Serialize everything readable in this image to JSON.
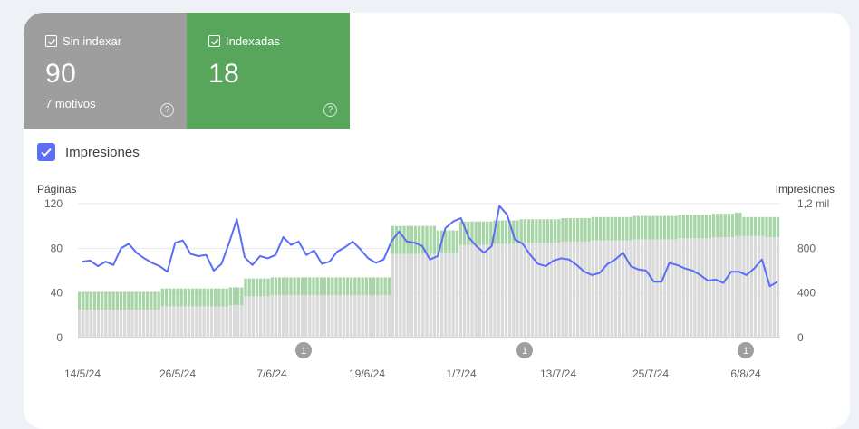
{
  "tiles": {
    "not_indexed": {
      "label": "Sin indexar",
      "value": "90",
      "sub": "7 motivos",
      "color": "#9e9e9e",
      "help_icon": "help-circle-icon"
    },
    "indexed": {
      "label": "Indexadas",
      "value": "18",
      "color": "#57a65b",
      "help_icon": "help-circle-icon"
    }
  },
  "impressions_toggle": {
    "label": "Impresiones",
    "checked": true,
    "color": "#5b6ef5"
  },
  "chart_data": {
    "type": "bar",
    "left_axis": {
      "title": "Páginas",
      "ticks": [
        "120",
        "80",
        "40",
        "0"
      ],
      "ylim": [
        0,
        120
      ]
    },
    "right_axis": {
      "title": "Impresiones",
      "ticks": [
        "1,2 mil",
        "800",
        "400",
        "0"
      ],
      "ylim": [
        0,
        1200
      ]
    },
    "x_tick_labels": [
      "14/5/24",
      "26/5/24",
      "7/6/24",
      "19/6/24",
      "1/7/24",
      "13/7/24",
      "25/7/24",
      "6/8/24"
    ],
    "x_start": "14/5/24",
    "series": [
      {
        "name": "Sin indexar",
        "color": "#dadada",
        "values": [
          25,
          25,
          25,
          25,
          25,
          25,
          25,
          25,
          25,
          25,
          25,
          25,
          25,
          25,
          25,
          25,
          25,
          25,
          25,
          25,
          25,
          25,
          28,
          28,
          28,
          28,
          28,
          28,
          28,
          28,
          28,
          28,
          28,
          28,
          28,
          28,
          28,
          28,
          28,
          28,
          29,
          29,
          29,
          29,
          37,
          37,
          37,
          37,
          37,
          37,
          37,
          38,
          38,
          38,
          38,
          38,
          38,
          38,
          38,
          38,
          38,
          38,
          38,
          38,
          38,
          38,
          38,
          38,
          38,
          38,
          38,
          38,
          38,
          38,
          38,
          38,
          38,
          38,
          38,
          38,
          38,
          38,
          38,
          75,
          75,
          75,
          75,
          75,
          75,
          75,
          75,
          75,
          75,
          75,
          75,
          76,
          76,
          76,
          76,
          76,
          76,
          83,
          83,
          83,
          83,
          83,
          83,
          83,
          83,
          83,
          84,
          84,
          84,
          84,
          84,
          84,
          84,
          85,
          85,
          85,
          85,
          85,
          85,
          85,
          85,
          85,
          85,
          85,
          86,
          86,
          86,
          86,
          86,
          86,
          86,
          86,
          87,
          87,
          87,
          87,
          87,
          87,
          87,
          87,
          87,
          87,
          87,
          88,
          88,
          88,
          88,
          88,
          88,
          88,
          88,
          88,
          88,
          88,
          88,
          89,
          89,
          89,
          89,
          89,
          89,
          89,
          89,
          89,
          90,
          90,
          90,
          90,
          90,
          90,
          91,
          91,
          91,
          91,
          91,
          91,
          91,
          91,
          90,
          90,
          90,
          90
        ]
      },
      {
        "name": "Indexadas",
        "color": "#a8d5a8",
        "values": [
          16,
          16,
          16,
          16,
          16,
          16,
          16,
          16,
          16,
          16,
          16,
          16,
          16,
          16,
          16,
          16,
          16,
          16,
          16,
          16,
          16,
          16,
          16,
          16,
          16,
          16,
          16,
          16,
          16,
          16,
          16,
          16,
          16,
          16,
          16,
          16,
          16,
          16,
          16,
          16,
          16,
          16,
          16,
          16,
          16,
          16,
          16,
          16,
          16,
          16,
          16,
          16,
          16,
          16,
          16,
          16,
          16,
          16,
          16,
          16,
          16,
          16,
          16,
          16,
          16,
          16,
          16,
          16,
          16,
          16,
          16,
          16,
          16,
          16,
          16,
          16,
          16,
          16,
          16,
          16,
          16,
          16,
          16,
          25,
          25,
          25,
          25,
          25,
          25,
          25,
          25,
          25,
          25,
          25,
          25,
          20,
          20,
          20,
          20,
          20,
          20,
          21,
          21,
          21,
          21,
          21,
          21,
          21,
          21,
          21,
          21,
          21,
          21,
          21,
          21,
          21,
          21,
          21,
          21,
          21,
          21,
          21,
          21,
          21,
          21,
          21,
          21,
          21,
          21,
          21,
          21,
          21,
          21,
          21,
          21,
          21,
          21,
          21,
          21,
          21,
          21,
          21,
          21,
          21,
          21,
          21,
          21,
          21,
          21,
          21,
          21,
          21,
          21,
          21,
          21,
          21,
          21,
          21,
          21,
          21,
          21,
          21,
          21,
          21,
          21,
          21,
          21,
          21,
          21,
          21,
          21,
          21,
          21,
          21,
          21,
          21,
          17,
          17,
          17,
          17,
          17,
          17,
          18,
          18,
          18,
          18
        ]
      },
      {
        "name": "Impresiones",
        "color": "#5b6ef5",
        "values": [
          680,
          690,
          640,
          680,
          650,
          800,
          840,
          760,
          710,
          670,
          640,
          590,
          850,
          870,
          750,
          730,
          740,
          600,
          660,
          850,
          1060,
          720,
          650,
          730,
          710,
          740,
          900,
          830,
          860,
          740,
          780,
          660,
          680,
          770,
          810,
          860,
          790,
          710,
          670,
          700,
          860,
          950,
          860,
          850,
          820,
          700,
          730,
          980,
          1040,
          1070,
          900,
          820,
          760,
          820,
          1180,
          1100,
          880,
          840,
          740,
          660,
          640,
          690,
          710,
          700,
          650,
          590,
          560,
          580,
          660,
          700,
          760,
          640,
          610,
          600,
          500,
          500,
          670,
          650,
          620,
          600,
          560,
          510,
          520,
          490,
          590,
          590,
          560,
          620,
          700,
          460,
          500
        ]
      }
    ],
    "annotations": [
      {
        "label": "1",
        "at": "7/6/24"
      },
      {
        "label": "1",
        "at": "7/7/24"
      },
      {
        "label": "1",
        "at": "6/8/24"
      }
    ]
  }
}
